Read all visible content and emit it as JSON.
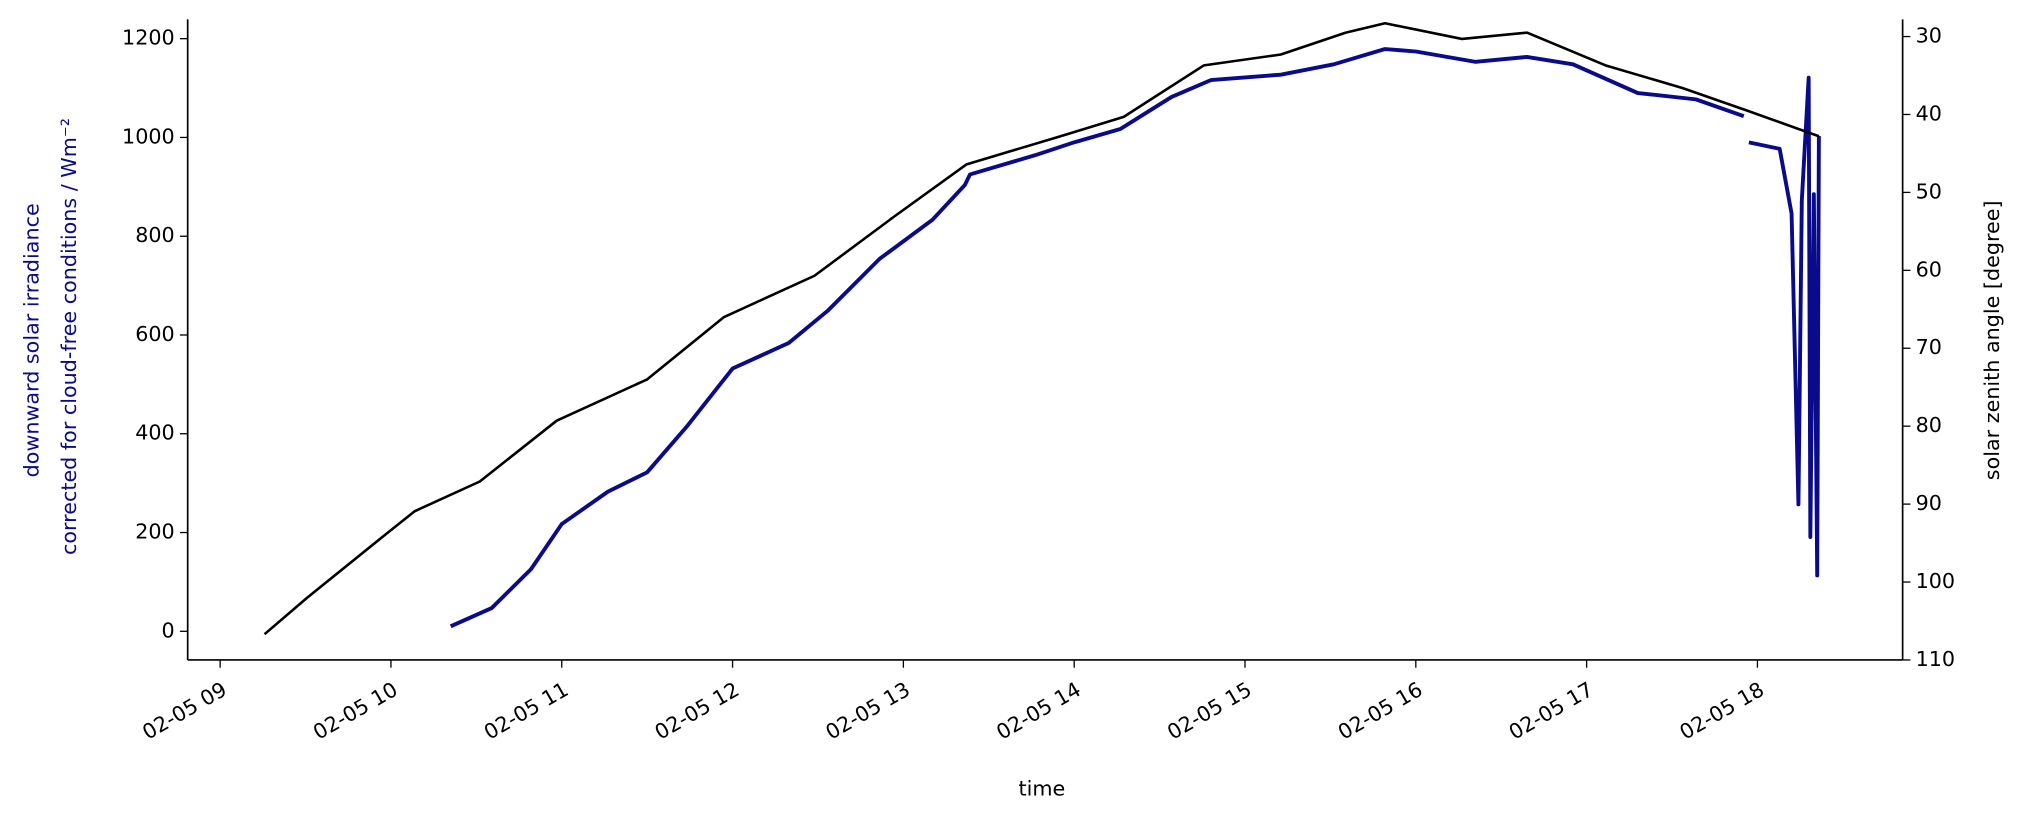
{
  "chart_data": {
    "type": "line",
    "xlabel": "time",
    "ylabel": [
      "downward solar irradiance",
      "corrected for cloud-free conditions / Wm⁻²"
    ],
    "y2label": "solar zenith angle [degree]",
    "ylabel_color": "#0a0a8c",
    "xlim": [
      8.81,
      18.85
    ],
    "xticks": [
      {
        "value": 9,
        "label": "02-05 09"
      },
      {
        "value": 10,
        "label": "02-05 10"
      },
      {
        "value": 11,
        "label": "02-05 11"
      },
      {
        "value": 12,
        "label": "02-05 12"
      },
      {
        "value": 13,
        "label": "02-05 13"
      },
      {
        "value": 14,
        "label": "02-05 14"
      },
      {
        "value": 15,
        "label": "02-05 15"
      },
      {
        "value": 16,
        "label": "02-05 16"
      },
      {
        "value": 17,
        "label": "02-05 17"
      },
      {
        "value": 18,
        "label": "02-05 18"
      }
    ],
    "ylim": [
      -58,
      1239
    ],
    "yticks": [
      0,
      200,
      400,
      600,
      800,
      1000,
      1200
    ],
    "y2lim": [
      110,
      27.8
    ],
    "y2ticks": [
      30,
      40,
      50,
      60,
      70,
      80,
      90,
      100,
      110
    ],
    "series": [
      {
        "name": "downward solar irradiance",
        "color": "#0a0a8c",
        "axis": "y",
        "x": [
          10.35,
          10.59,
          10.82,
          11.0,
          11.27,
          11.5,
          11.73,
          12.0,
          12.33,
          12.56,
          12.86,
          13.17,
          13.36,
          13.39,
          13.77,
          14.0,
          14.27,
          14.57,
          14.8,
          15.21,
          15.52,
          15.82,
          16.0,
          16.35,
          16.65,
          16.92,
          17.3,
          17.64,
          17.92,
          null,
          17.95,
          18.13,
          18.2,
          18.24,
          18.26,
          18.3,
          18.31,
          18.33,
          18.35,
          18.36
        ],
        "values": [
          10,
          47,
          126,
          217,
          283,
          322,
          414,
          532,
          584,
          650,
          754,
          833,
          904,
          925,
          964,
          990,
          1017,
          1082,
          1116,
          1127,
          1148,
          1179,
          1174,
          1153,
          1163,
          1148,
          1090,
          1077,
          1043,
          null,
          990,
          977,
          846,
          257,
          872,
          1121,
          191,
          885,
          113,
          1003
        ]
      },
      {
        "name": "solar zenith angle",
        "color": "#000000",
        "axis": "y2",
        "x": [
          9.26,
          9.51,
          9.98,
          10.14,
          10.52,
          10.97,
          11.5,
          11.95,
          12.48,
          12.94,
          13.37,
          13.92,
          14.29,
          14.76,
          15.21,
          15.59,
          15.82,
          16.27,
          16.65,
          17.11,
          17.56,
          17.94,
          18.36
        ],
        "values": [
          106.7,
          102,
          93.7,
          90.9,
          87.1,
          79.3,
          74,
          66,
          60.7,
          53.2,
          46.4,
          42.8,
          40.3,
          33.7,
          32.3,
          29.5,
          28.3,
          30.3,
          29.5,
          33.7,
          36.6,
          39.5,
          42.8
        ]
      }
    ]
  }
}
